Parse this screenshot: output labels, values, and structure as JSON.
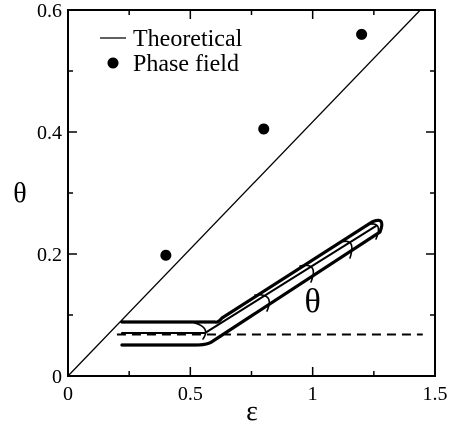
{
  "chart_data": {
    "type": "scatter",
    "xlabel": "ε",
    "ylabel": "θ",
    "xlim": [
      0,
      1.5
    ],
    "ylim": [
      0,
      0.6
    ],
    "x_ticks": [
      0,
      0.5,
      1,
      1.5
    ],
    "x_tick_labels": [
      "0",
      "0.5",
      "1",
      "1.5"
    ],
    "y_ticks": [
      0,
      0.2,
      0.4,
      0.6
    ],
    "y_tick_labels": [
      "0",
      "0.2",
      "0.4",
      "0.6"
    ],
    "grid": false,
    "legend_position": "top-left",
    "series": [
      {
        "name": "Theoretical",
        "kind": "line",
        "x": [
          0,
          1.44
        ],
        "y": [
          0,
          0.6
        ]
      },
      {
        "name": "Phase field",
        "kind": "points",
        "x": [
          0.4,
          0.8,
          1.2
        ],
        "y": [
          0.198,
          0.405,
          0.56
        ]
      }
    ],
    "reference_line": {
      "style": "dashed",
      "y": 0.068,
      "x": [
        0.2,
        1.45
      ]
    },
    "annotation": {
      "text": "θ",
      "x": 1.0,
      "y": 0.105
    }
  }
}
